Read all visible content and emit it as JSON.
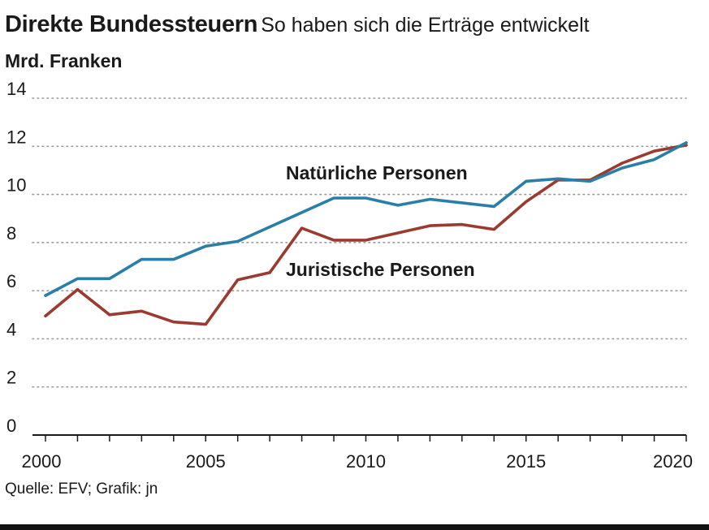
{
  "header": {
    "title": "Direkte Bundessteuern",
    "subtitle": "So haben sich die Erträge entwickelt",
    "unit": "Mrd. Franken"
  },
  "footer": {
    "source": "Quelle: EFV; Grafik: jn"
  },
  "colors": {
    "natuerliche": "#2a7fa8",
    "juristische": "#9b3a2f",
    "grid": "#9a9a9a",
    "axis": "#1a1a1a"
  },
  "chart_data": {
    "type": "line",
    "title": "Direkte Bundessteuern",
    "subtitle": "So haben sich die Erträge entwickelt",
    "ylabel": "Mrd. Franken",
    "xlabel": "",
    "xlim": [
      2000,
      2020
    ],
    "ylim": [
      0,
      14
    ],
    "grid": true,
    "x_ticks": [
      2000,
      2005,
      2010,
      2015,
      2020
    ],
    "y_ticks": [
      0,
      2,
      4,
      6,
      8,
      10,
      12,
      14
    ],
    "x": [
      2000,
      2001,
      2002,
      2003,
      2004,
      2005,
      2006,
      2007,
      2008,
      2009,
      2010,
      2011,
      2012,
      2013,
      2014,
      2015,
      2016,
      2017,
      2018,
      2019,
      2020
    ],
    "series": [
      {
        "name": "Natürliche Personen",
        "color": "#2a7fa8",
        "values": [
          5.8,
          6.5,
          6.5,
          7.3,
          7.3,
          7.85,
          8.05,
          8.65,
          9.25,
          9.85,
          9.85,
          9.55,
          9.8,
          9.65,
          9.5,
          10.55,
          10.65,
          10.55,
          11.1,
          11.45,
          12.15
        ]
      },
      {
        "name": "Juristische Personen",
        "color": "#9b3a2f",
        "values": [
          4.95,
          6.05,
          5.0,
          5.15,
          4.7,
          4.6,
          6.45,
          6.75,
          8.6,
          8.1,
          8.1,
          8.4,
          8.7,
          8.75,
          8.55,
          9.7,
          10.6,
          10.6,
          11.3,
          11.8,
          12.05
        ]
      }
    ]
  }
}
